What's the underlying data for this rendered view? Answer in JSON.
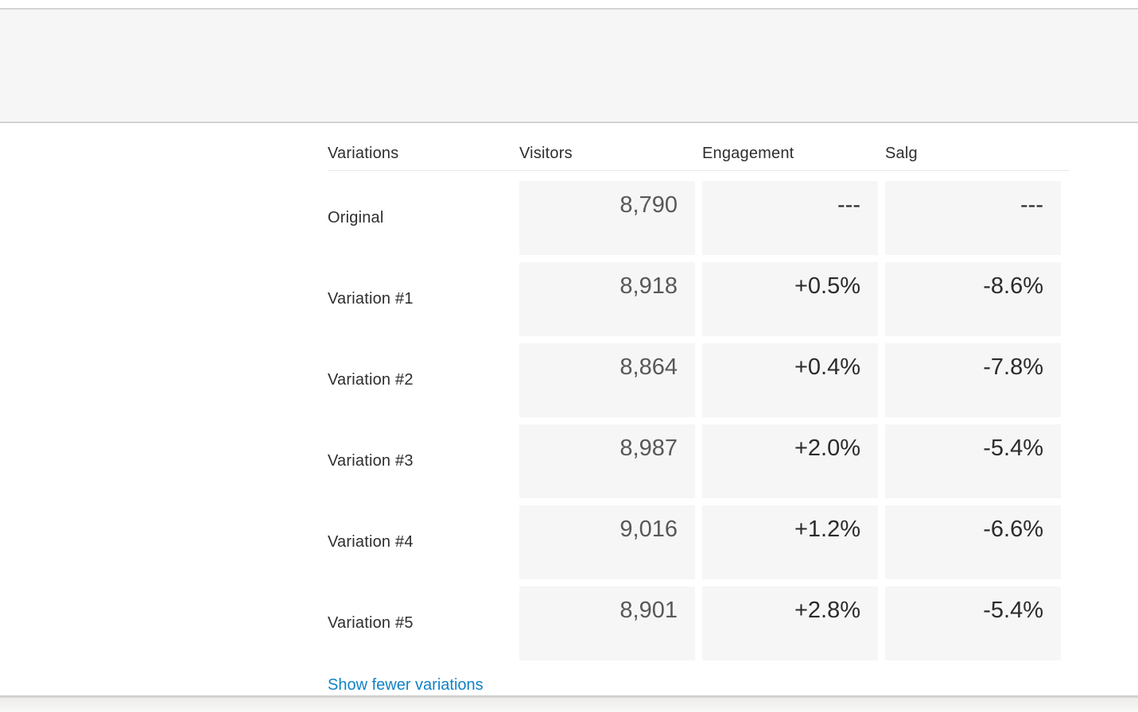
{
  "top_panel": {
    "background": "#f5f6f5",
    "border_color": "#d2d2d2"
  },
  "table": {
    "headers": [
      "Variations",
      "Visitors",
      "Engagement",
      "Salg"
    ],
    "rows": [
      {
        "label": "Original",
        "visitors": "8,790",
        "engagement": "---",
        "salg": "---"
      },
      {
        "label": "Variation #1",
        "visitors": "8,918",
        "engagement": "+0.5%",
        "salg": "-8.6%"
      },
      {
        "label": "Variation #2",
        "visitors": "8,864",
        "engagement": "+0.4%",
        "salg": "-7.8%"
      },
      {
        "label": "Variation #3",
        "visitors": "8,987",
        "engagement": "+2.0%",
        "salg": "-5.4%"
      },
      {
        "label": "Variation #4",
        "visitors": "9,016",
        "engagement": "+1.2%",
        "salg": "-6.6%"
      },
      {
        "label": "Variation #5",
        "visitors": "8,901",
        "engagement": "+2.8%",
        "salg": "-5.4%"
      }
    ],
    "footer_link_label": "Show fewer variations",
    "colors": {
      "cell_background": "#f6f6f6",
      "visitors_value_text": "#58585a",
      "percent_value_text": "#2b2b2b",
      "header_text": "#2e2e2e",
      "header_divider": "#e8e8e8",
      "link_blue": "#1283c6"
    }
  }
}
